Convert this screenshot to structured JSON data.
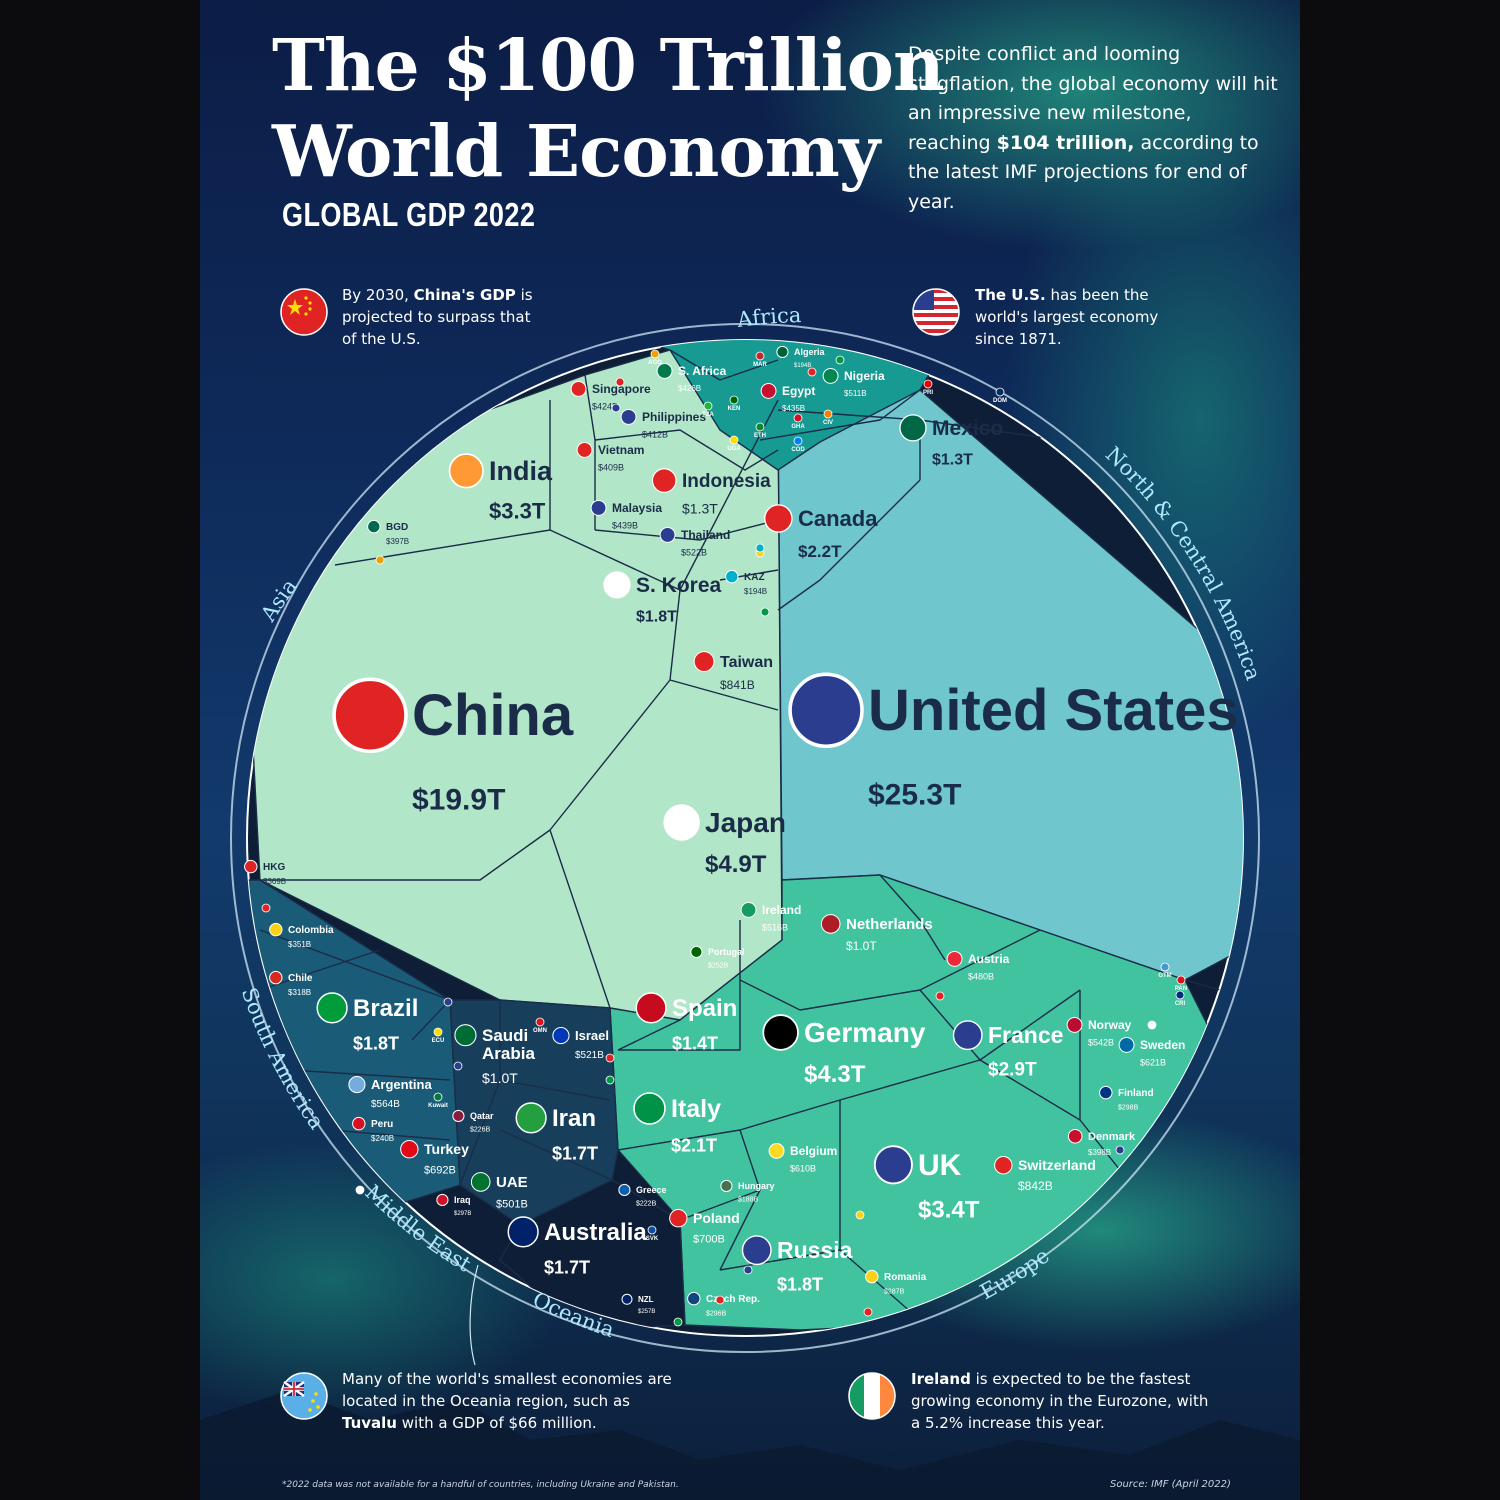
{
  "title_line1": "The $100 Trillion",
  "title_line2": "World Economy",
  "subtitle": "GLOBAL GDP 2022",
  "intro": {
    "part1": "Despite conflict and looming stagflation, the global economy will hit an impressive new milestone, reaching ",
    "highlight": "$104 trillion,",
    "part2": " according to the latest IMF projections for end of year."
  },
  "notes": {
    "china": {
      "pre": "By 2030, ",
      "bold": "China's GDP",
      "post": " is projected to surpass that of the U.S."
    },
    "us": {
      "pre": "",
      "bold": "The U.S.",
      "post": " has been the world's largest economy since 1871."
    },
    "oceania": {
      "pre": "Many of the world's smallest economies are located in the Oceania region, such as ",
      "bold": "Tuvalu",
      "post": " with a GDP of $66 million."
    },
    "ireland": {
      "pre": "",
      "bold": "Ireland",
      "post": " is expected to be the fastest growing economy in the Eurozone, with a 5.2% increase this year."
    }
  },
  "footnote": "*2022 data was not available for a handful of countries, including Ukraine and Pakistan.",
  "source": "Source: IMF (April 2022)",
  "colors": {
    "asia": "#b2e6c8",
    "north_central_america": "#6fc7cd",
    "europe": "#42c39f",
    "africa": "#169a92",
    "south_america": "#1a5c78",
    "middle_east": "#173f5c",
    "oceania": "#0d1e36",
    "label_dark": "#1a2c48",
    "label_light": "#ffffff",
    "ring": "#cfe6f5"
  },
  "chart_data": {
    "type": "voronoi-treemap",
    "unit": "USD",
    "regions": [
      {
        "name": "Asia",
        "countries": [
          {
            "label": "China",
            "value": "$19.9T",
            "gdp_billion": 19900
          },
          {
            "label": "Japan",
            "value": "$4.9T",
            "gdp_billion": 4900
          },
          {
            "label": "India",
            "value": "$3.3T",
            "gdp_billion": 3300
          },
          {
            "label": "S. Korea",
            "value": "$1.8T",
            "gdp_billion": 1800
          },
          {
            "label": "Indonesia",
            "value": "$1.3T",
            "gdp_billion": 1300
          },
          {
            "label": "Taiwan",
            "value": "$841B",
            "gdp_billion": 841
          },
          {
            "label": "Thailand",
            "value": "$522B",
            "gdp_billion": 522
          },
          {
            "label": "Malaysia",
            "value": "$439B",
            "gdp_billion": 439
          },
          {
            "label": "Singapore",
            "value": "$424B",
            "gdp_billion": 424
          },
          {
            "label": "Philippines",
            "value": "$412B",
            "gdp_billion": 412
          },
          {
            "label": "Vietnam",
            "value": "$409B",
            "gdp_billion": 409
          },
          {
            "label": "BGD",
            "value": "$397B",
            "gdp_billion": 397
          },
          {
            "label": "HKG",
            "value": "$369B",
            "gdp_billion": 369
          },
          {
            "label": "KAZ",
            "value": "$194B",
            "gdp_billion": 194
          }
        ]
      },
      {
        "name": "North & Central America",
        "countries": [
          {
            "label": "United States",
            "value": "$25.3T",
            "gdp_billion": 25300
          },
          {
            "label": "Canada",
            "value": "$2.2T",
            "gdp_billion": 2200
          },
          {
            "label": "Mexico",
            "value": "$1.3T",
            "gdp_billion": 1300
          }
        ]
      },
      {
        "name": "Europe",
        "countries": [
          {
            "label": "Germany",
            "value": "$4.3T",
            "gdp_billion": 4300
          },
          {
            "label": "UK",
            "value": "$3.4T",
            "gdp_billion": 3400
          },
          {
            "label": "France",
            "value": "$2.9T",
            "gdp_billion": 2900
          },
          {
            "label": "Italy",
            "value": "$2.1T",
            "gdp_billion": 2100
          },
          {
            "label": "Russia",
            "value": "$1.8T",
            "gdp_billion": 1800
          },
          {
            "label": "Spain",
            "value": "$1.4T",
            "gdp_billion": 1400
          },
          {
            "label": "Netherlands",
            "value": "$1.0T",
            "gdp_billion": 1000
          },
          {
            "label": "Switzerland",
            "value": "$842B",
            "gdp_billion": 842
          },
          {
            "label": "Poland",
            "value": "$700B",
            "gdp_billion": 700
          },
          {
            "label": "Sweden",
            "value": "$621B",
            "gdp_billion": 621
          },
          {
            "label": "Belgium",
            "value": "$610B",
            "gdp_billion": 610
          },
          {
            "label": "Norway",
            "value": "$542B",
            "gdp_billion": 542
          },
          {
            "label": "Ireland",
            "value": "$516B",
            "gdp_billion": 516
          },
          {
            "label": "Austria",
            "value": "$480B",
            "gdp_billion": 480
          },
          {
            "label": "Denmark",
            "value": "$398B",
            "gdp_billion": 398
          },
          {
            "label": "Romania",
            "value": "$287B",
            "gdp_billion": 287
          },
          {
            "label": "Czech Rep.",
            "value": "$296B",
            "gdp_billion": 296
          },
          {
            "label": "Finland",
            "value": "$298B",
            "gdp_billion": 298
          },
          {
            "label": "Portugal",
            "value": "$252B",
            "gdp_billion": 252
          },
          {
            "label": "Greece",
            "value": "$222B",
            "gdp_billion": 222
          },
          {
            "label": "Hungary",
            "value": "$188B",
            "gdp_billion": 188
          }
        ]
      },
      {
        "name": "Africa",
        "countries": [
          {
            "label": "Nigeria",
            "value": "$511B",
            "gdp_billion": 511
          },
          {
            "label": "Egypt",
            "value": "$435B",
            "gdp_billion": 435
          },
          {
            "label": "S. Africa",
            "value": "$426B",
            "gdp_billion": 426
          },
          {
            "label": "Algeria",
            "value": "$194B",
            "gdp_billion": 194
          }
        ]
      },
      {
        "name": "South America",
        "countries": [
          {
            "label": "Brazil",
            "value": "$1.8T",
            "gdp_billion": 1800
          },
          {
            "label": "Argentina",
            "value": "$564B",
            "gdp_billion": 564
          },
          {
            "label": "Colombia",
            "value": "$351B",
            "gdp_billion": 351
          },
          {
            "label": "Chile",
            "value": "$318B",
            "gdp_billion": 318
          },
          {
            "label": "Peru",
            "value": "$240B",
            "gdp_billion": 240
          }
        ]
      },
      {
        "name": "Middle East",
        "countries": [
          {
            "label": "Iran",
            "value": "$1.7T",
            "gdp_billion": 1700
          },
          {
            "label": "Saudi Arabia",
            "value": "$1.0T",
            "gdp_billion": 1000
          },
          {
            "label": "Turkey",
            "value": "$692B",
            "gdp_billion": 692
          },
          {
            "label": "Israel",
            "value": "$521B",
            "gdp_billion": 521
          },
          {
            "label": "UAE",
            "value": "$501B",
            "gdp_billion": 501
          },
          {
            "label": "Iraq",
            "value": "$297B",
            "gdp_billion": 297
          },
          {
            "label": "Qatar",
            "value": "$226B",
            "gdp_billion": 226
          }
        ]
      },
      {
        "name": "Oceania",
        "countries": [
          {
            "label": "Australia",
            "value": "$1.7T",
            "gdp_billion": 1700
          },
          {
            "label": "NZL",
            "value": "$257B",
            "gdp_billion": 257
          }
        ]
      }
    ],
    "abbreviation_labels": [
      "AGO",
      "MAR",
      "ETH",
      "KEN",
      "TZA",
      "GHA",
      "CIV",
      "COD",
      "UGA",
      "ECU",
      "Kuwait",
      "OMN",
      "SVK",
      "PRI",
      "DOM",
      "GTM",
      "PAN",
      "CRI"
    ]
  }
}
